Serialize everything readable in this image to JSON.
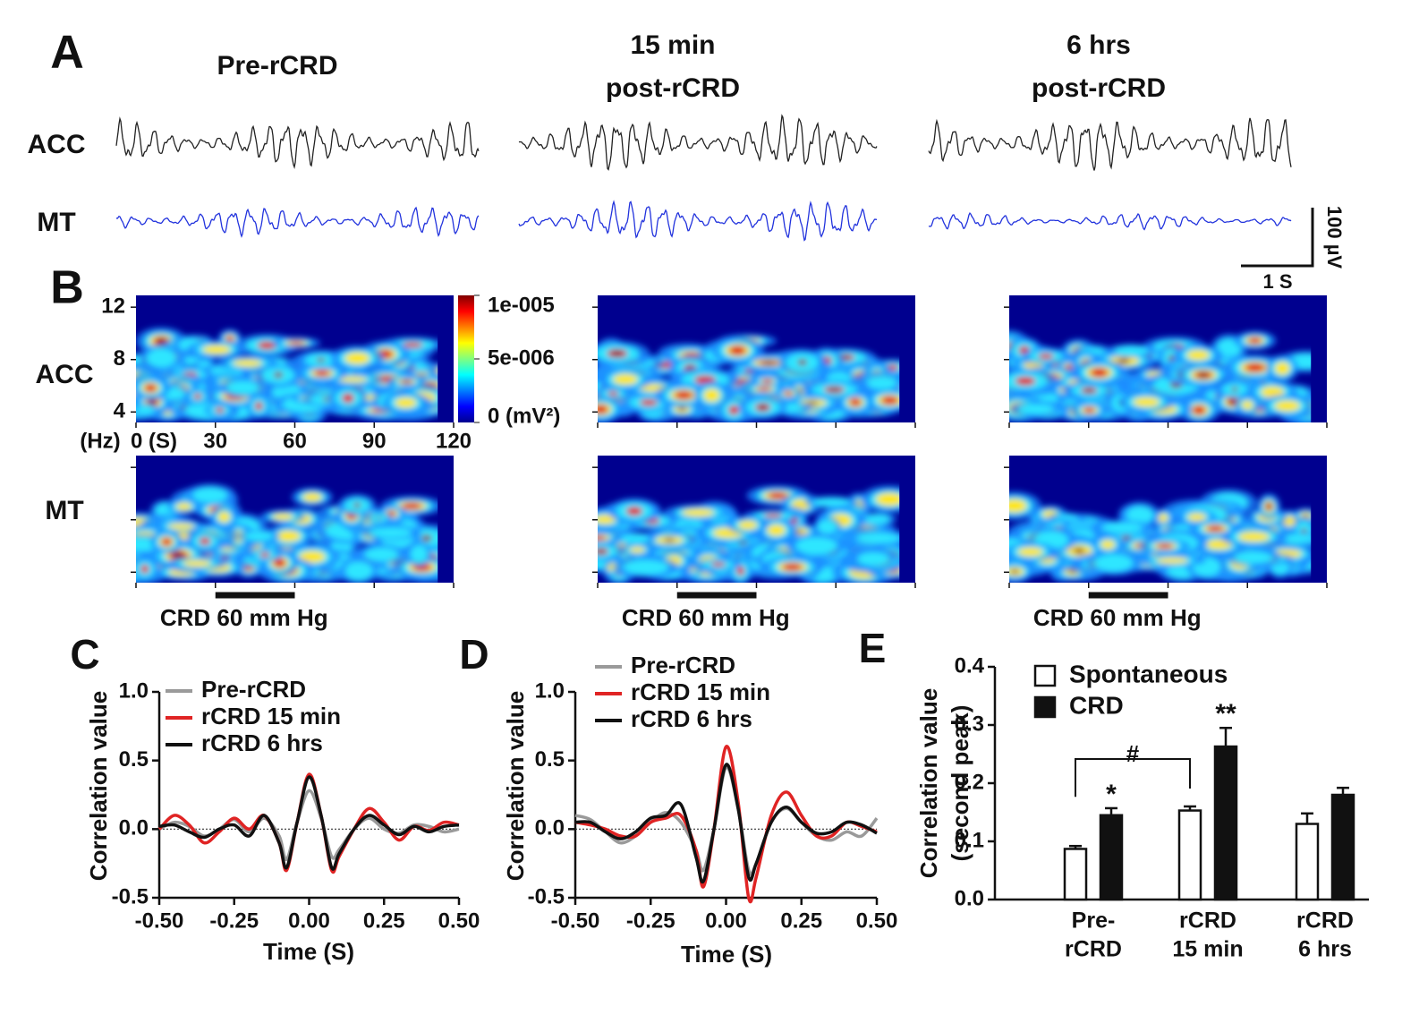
{
  "traces": {
    "label": "A",
    "conditions": [
      [
        "Pre-rCRD"
      ],
      [
        "15 min",
        "post-rCRD"
      ],
      [
        "6 hrs",
        "post-rCRD"
      ]
    ],
    "regions": [
      "ACC",
      "MT"
    ],
    "scale_bar": {
      "amplitude": "100 µV",
      "time": "1 S"
    }
  },
  "spectrograms": {
    "label": "B",
    "regions": [
      "ACC",
      "MT"
    ],
    "ylabel": "(Hz)",
    "ylim": [
      3.2,
      12.9
    ],
    "yticks": [
      4,
      8,
      12
    ],
    "xlim": [
      0,
      120
    ],
    "xticks": [
      {
        "value": 0,
        "label": "0 (S)"
      },
      30,
      60,
      90,
      120
    ],
    "colorbar": {
      "lim": [
        0,
        1e-05
      ],
      "ticks": [
        {
          "value": 1e-05,
          "label": "1e-005"
        },
        {
          "value": 5e-06,
          "label": "5e-006"
        },
        {
          "value": 0,
          "label": "0 (mV²)"
        }
      ]
    },
    "stimulus": {
      "label": "CRD 60 mm Hg",
      "range": [
        30,
        60
      ]
    }
  },
  "chart_data": [
    {
      "type": "line",
      "label": "C",
      "xlabel": "Time (S)",
      "ylabel": "Correlation value",
      "x": [
        -0.5,
        -0.45,
        -0.4,
        -0.35,
        -0.3,
        -0.25,
        -0.2,
        -0.15,
        -0.1,
        -0.075,
        -0.04,
        0,
        0.04,
        0.075,
        0.1,
        0.15,
        0.2,
        0.25,
        0.3,
        0.35,
        0.4,
        0.45,
        0.5
      ],
      "xlim": [
        -0.5,
        0.5
      ],
      "xticks": [
        {
          "value": -0.5,
          "label": "-0.50"
        },
        {
          "value": -0.25,
          "label": "-0.25"
        },
        {
          "value": 0,
          "label": "0.00"
        },
        {
          "value": 0.25,
          "label": "0.25"
        },
        {
          "value": 0.5,
          "label": "0.50"
        }
      ],
      "ylim": [
        -0.5,
        1.0
      ],
      "yticks": [
        {
          "value": -0.5,
          "label": "-0.5"
        },
        {
          "value": 0,
          "label": "0.0"
        },
        {
          "value": 0.5,
          "label": "0.5"
        },
        {
          "value": 1.0,
          "label": "1.0"
        }
      ],
      "series": [
        {
          "name": "Pre-rCRD",
          "color": "#9a9a9a",
          "values": [
            0.0,
            0.05,
            0.02,
            -0.05,
            0.0,
            0.07,
            -0.02,
            0.08,
            -0.05,
            -0.22,
            0.05,
            0.28,
            0.08,
            -0.2,
            -0.15,
            0.0,
            0.08,
            0.0,
            -0.03,
            0.03,
            0.02,
            -0.02,
            0.0
          ]
        },
        {
          "name": "rCRD 15 min",
          "color": "#e02424",
          "values": [
            0.0,
            0.1,
            0.03,
            -0.1,
            -0.02,
            0.08,
            0.0,
            0.1,
            -0.1,
            -0.3,
            0.05,
            0.4,
            0.1,
            -0.3,
            -0.2,
            0.0,
            0.15,
            0.05,
            -0.08,
            0.02,
            -0.01,
            0.05,
            0.03
          ]
        },
        {
          "name": "rCRD 6 hrs",
          "color": "#111111",
          "values": [
            0.02,
            0.03,
            -0.02,
            -0.06,
            0.0,
            0.03,
            -0.05,
            0.1,
            -0.1,
            -0.28,
            0.05,
            0.38,
            0.1,
            -0.28,
            -0.18,
            0.0,
            0.1,
            0.03,
            -0.04,
            0.02,
            -0.02,
            0.02,
            0.03
          ]
        }
      ]
    },
    {
      "type": "line",
      "label": "D",
      "xlabel": "Time (S)",
      "ylabel": "Correlation value",
      "x": [
        -0.5,
        -0.45,
        -0.4,
        -0.35,
        -0.3,
        -0.25,
        -0.2,
        -0.15,
        -0.1,
        -0.075,
        -0.04,
        0,
        0.04,
        0.075,
        0.1,
        0.15,
        0.2,
        0.25,
        0.3,
        0.35,
        0.4,
        0.45,
        0.5
      ],
      "xlim": [
        -0.5,
        0.5
      ],
      "xticks": [
        {
          "value": -0.5,
          "label": "-0.50"
        },
        {
          "value": -0.25,
          "label": "-0.25"
        },
        {
          "value": 0,
          "label": "0.00"
        },
        {
          "value": 0.25,
          "label": "0.25"
        },
        {
          "value": 0.5,
          "label": "0.50"
        }
      ],
      "ylim": [
        -0.5,
        1.0
      ],
      "yticks": [
        {
          "value": -0.5,
          "label": "-0.5"
        },
        {
          "value": 0,
          "label": "0.0"
        },
        {
          "value": 0.5,
          "label": "0.5"
        },
        {
          "value": 1.0,
          "label": "1.0"
        }
      ],
      "series": [
        {
          "name": "Pre-rCRD",
          "color": "#9a9a9a",
          "values": [
            0.1,
            0.07,
            -0.02,
            -0.1,
            -0.05,
            0.05,
            0.12,
            0.05,
            -0.15,
            -0.3,
            0.0,
            0.45,
            0.15,
            -0.3,
            -0.25,
            0.05,
            0.15,
            0.05,
            -0.05,
            -0.08,
            -0.02,
            -0.05,
            0.08
          ]
        },
        {
          "name": "rCRD 15 min",
          "color": "#e02424",
          "values": [
            0.05,
            0.03,
            0.0,
            -0.05,
            -0.05,
            0.05,
            0.08,
            0.1,
            -0.15,
            -0.42,
            0.0,
            0.6,
            0.2,
            -0.5,
            -0.35,
            0.1,
            0.27,
            0.1,
            -0.05,
            -0.05,
            0.05,
            0.02,
            -0.02
          ]
        },
        {
          "name": "rCRD 6 hrs",
          "color": "#111111",
          "values": [
            0.05,
            0.05,
            -0.02,
            -0.07,
            -0.02,
            0.08,
            0.1,
            0.18,
            -0.2,
            -0.38,
            0.0,
            0.47,
            0.15,
            -0.35,
            -0.25,
            0.05,
            0.16,
            0.05,
            -0.03,
            -0.02,
            0.05,
            0.03,
            -0.03
          ]
        }
      ]
    },
    {
      "type": "bar",
      "label": "E",
      "ylabel": [
        "Correlation value",
        "(second peak)"
      ],
      "categories": [
        [
          "Pre-",
          "rCRD"
        ],
        [
          "rCRD",
          "15 min"
        ],
        [
          "rCRD",
          "6 hrs"
        ]
      ],
      "ylim": [
        0,
        0.4
      ],
      "yticks": [
        {
          "value": 0,
          "label": "0.0"
        },
        0.1,
        0.2,
        0.3,
        0.4
      ],
      "series": [
        {
          "name": "Spontaneous",
          "color": "#ffffff",
          "values": [
            0.087,
            0.153,
            0.13
          ],
          "errors": [
            0.005,
            0.007,
            0.018
          ]
        },
        {
          "name": "CRD",
          "color": "#111111",
          "values": [
            0.145,
            0.263,
            0.18
          ],
          "errors": [
            0.012,
            0.032,
            0.012
          ]
        }
      ],
      "annotations": [
        "*",
        "**",
        "#"
      ]
    }
  ]
}
